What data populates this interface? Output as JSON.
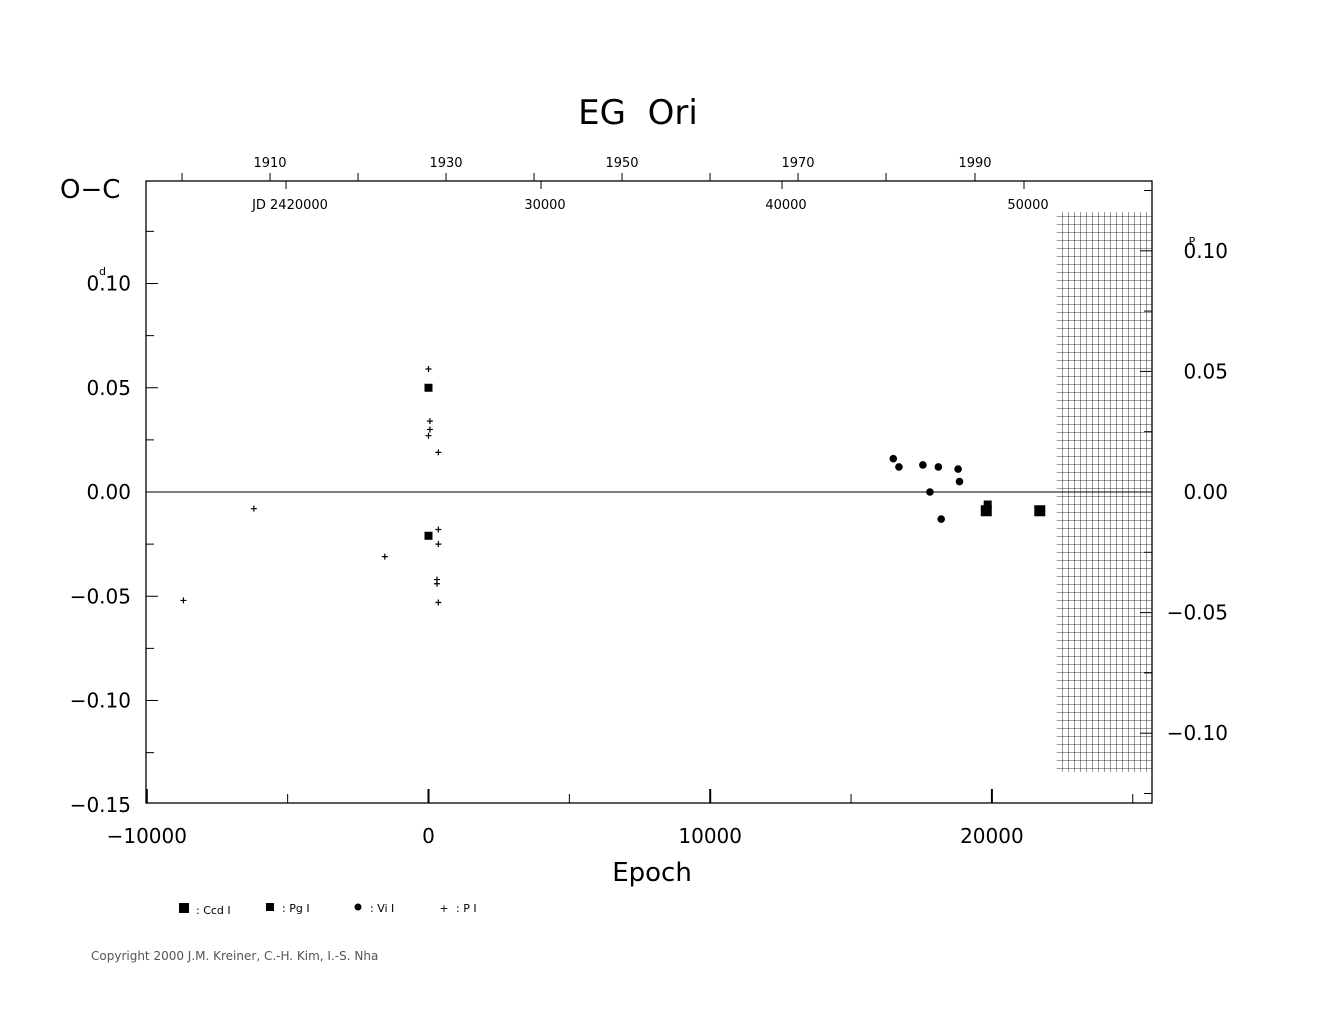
{
  "chart_data": {
    "type": "scatter",
    "title": "EG  Ori",
    "xlabel": "Epoch",
    "ylabel": "O−C",
    "ylabel_unit": "d",
    "y2_unit": "P",
    "xlim": [
      -10000,
      25800
    ],
    "ylim": [
      -0.15,
      0.15
    ],
    "x_ticks": [
      "−10000",
      "0",
      "10000",
      "20000"
    ],
    "y_ticks": [
      "0.10",
      "0.05",
      "0.00",
      "−0.05",
      "−0.10",
      "−0.15"
    ],
    "y2_ticks": [
      "0.10",
      "0.05",
      "0.00",
      "−0.05",
      "−0.10"
    ],
    "top_year_ticks": [
      "1910",
      "1930",
      "1950",
      "1970",
      "1990"
    ],
    "top_jd_ticks": [
      "JD  2420000",
      "30000",
      "40000",
      "50000"
    ],
    "zero_line": true,
    "hatched_region": [
      22300,
      25800
    ],
    "series": [
      {
        "name": ": Ccd  I",
        "marker": "large-square",
        "points": [
          [
            19800,
            -0.009
          ],
          [
            21700,
            -0.009
          ]
        ]
      },
      {
        "name": ": Pg  I",
        "marker": "small-square",
        "points": [
          [
            0,
            0.05
          ],
          [
            0,
            -0.021
          ],
          [
            19850,
            -0.006
          ]
        ]
      },
      {
        "name": ": Vi  I",
        "marker": "circle",
        "points": [
          [
            16500,
            0.016
          ],
          [
            16700,
            0.012
          ],
          [
            17550,
            0.013
          ],
          [
            17800,
            0.0
          ],
          [
            18100,
            0.012
          ],
          [
            18200,
            -0.013
          ],
          [
            18800,
            0.011
          ],
          [
            18850,
            0.005
          ]
        ]
      },
      {
        "name": ": P  I",
        "marker": "plus",
        "points": [
          [
            -8700,
            -0.052
          ],
          [
            -6200,
            -0.008
          ],
          [
            -1550,
            -0.031
          ],
          [
            0,
            0.059
          ],
          [
            50,
            0.034
          ],
          [
            50,
            0.03
          ],
          [
            0,
            0.027
          ],
          [
            350,
            0.019
          ],
          [
            350,
            -0.018
          ],
          [
            350,
            -0.025
          ],
          [
            300,
            -0.042
          ],
          [
            300,
            -0.044
          ],
          [
            350,
            -0.053
          ]
        ]
      }
    ]
  },
  "copyright": "Copyright 2000 J.M. Kreiner, C.-H. Kim, I.-S. Nha"
}
